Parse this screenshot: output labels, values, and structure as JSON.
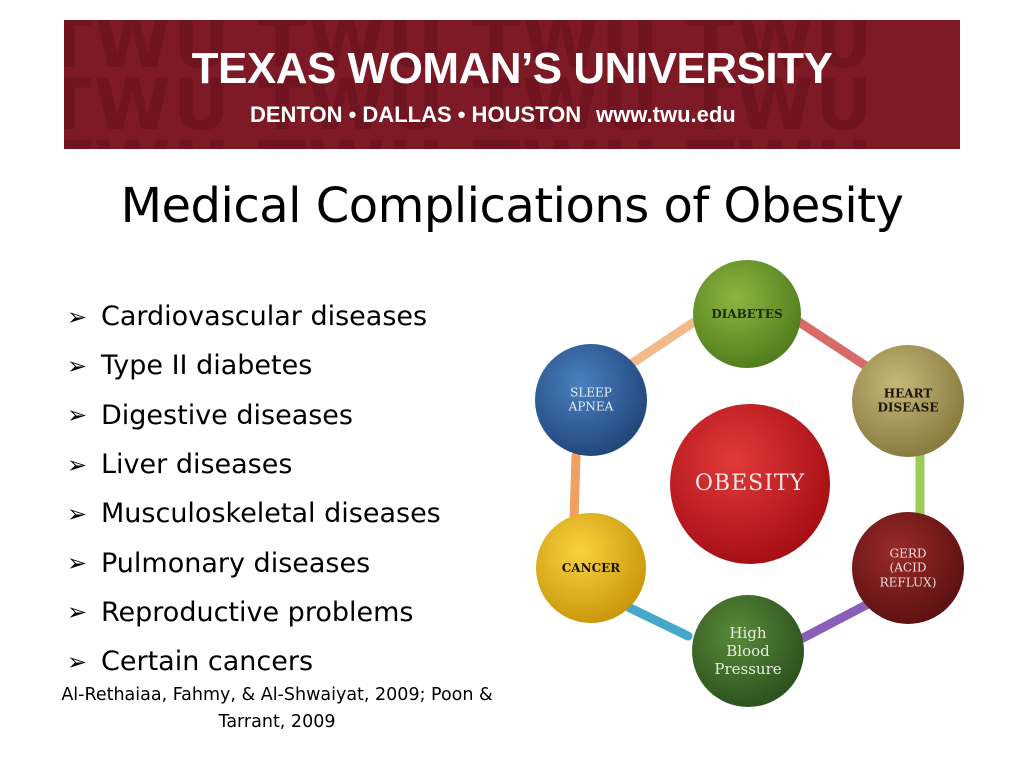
{
  "banner": {
    "title": "TEXAS WOMAN’S UNIVERSITY",
    "cities": "DENTON • DALLAS • HOUSTON",
    "url": "www.twu.edu",
    "watermark_text": "TWU TWU TWU TWU TWU TWU",
    "background_color": "#7d1a26"
  },
  "slide": {
    "title": "Medical Complications of Obesity"
  },
  "bullets": [
    {
      "icon": "arrow-bullet-icon",
      "text": "Cardiovascular diseases"
    },
    {
      "icon": "arrow-bullet-icon",
      "text": "Type II diabetes"
    },
    {
      "icon": "arrow-bullet-icon",
      "text": "Digestive diseases"
    },
    {
      "icon": "arrow-bullet-icon",
      "text": "Liver diseases"
    },
    {
      "icon": "arrow-bullet-icon",
      "text": "Musculoskeletal diseases"
    },
    {
      "icon": "arrow-bullet-icon",
      "text": "Pulmonary diseases"
    },
    {
      "icon": "arrow-bullet-icon",
      "text": "Reproductive problems"
    },
    {
      "icon": "arrow-bullet-icon",
      "text": "Certain cancers"
    }
  ],
  "citation": "Al-Rethaiaa, Fahmy, & Al-Shwaiyat, 2009; Poon & Tarrant, 2009",
  "diagram": {
    "center": {
      "label": "OBESITY",
      "color": "#c8141c"
    },
    "nodes": [
      {
        "label": "DIABETES",
        "color": "#6f9a2a"
      },
      {
        "label": "HEART\nDISEASE",
        "color": "#a89a58"
      },
      {
        "label": "GERD\n(ACID\nREFLUX)",
        "color": "#7a1b1b"
      },
      {
        "label": "High\nBlood\nPressure",
        "color": "#3f6b2b"
      },
      {
        "label": "CANCER",
        "color": "#e6b81a"
      },
      {
        "label": "SLEEP\nAPNEA",
        "color": "#2f5f9a"
      }
    ],
    "connector_colors": [
      "#d86a6a",
      "#9ccc5a",
      "#8a5fb8",
      "#46a8c8",
      "#f0a060",
      "#f2b98a"
    ]
  }
}
